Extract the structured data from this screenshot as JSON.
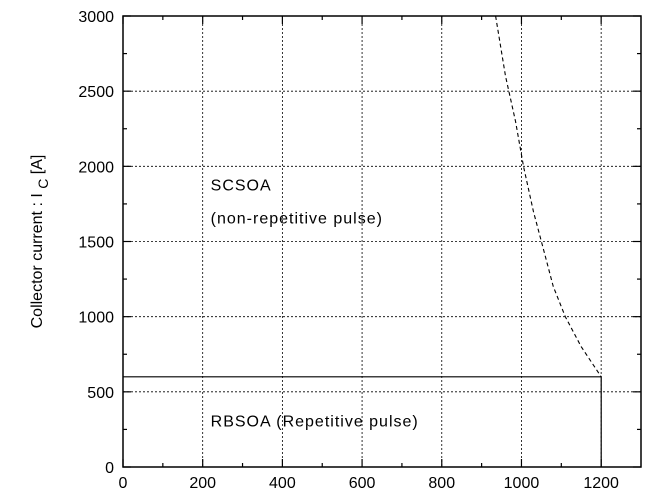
{
  "chart_data": {
    "type": "line",
    "title": "",
    "xlim": [
      0,
      1300
    ],
    "ylim": [
      0,
      3000
    ],
    "x_ticks": [
      0,
      200,
      400,
      600,
      800,
      1000,
      1200
    ],
    "y_ticks": [
      0,
      500,
      1000,
      1500,
      2000,
      2500,
      3000
    ],
    "ylabel": "Collector current : I",
    "ylabel_subscript": "C",
    "ylabel_unit": "[A]",
    "grid": true,
    "series": [
      {
        "style": "dashed",
        "points": [
          [
            935,
            3000
          ],
          [
            960,
            2600
          ],
          [
            985,
            2300
          ],
          [
            1005,
            2000
          ],
          [
            1030,
            1700
          ],
          [
            1050,
            1500
          ],
          [
            1080,
            1200
          ],
          [
            1110,
            1000
          ],
          [
            1150,
            800
          ],
          [
            1200,
            600
          ]
        ]
      },
      {
        "style": "solid",
        "points": [
          [
            0,
            600
          ],
          [
            1200,
            600
          ],
          [
            1200,
            0
          ]
        ]
      }
    ],
    "annotations": [
      {
        "text": "SCSOA",
        "x": 220,
        "y": 1840
      },
      {
        "text": "(non-repetitive pulse)",
        "x": 220,
        "y": 1620
      },
      {
        "text": "RBSOA (Repetitive pulse)",
        "x": 220,
        "y": 270
      }
    ]
  }
}
